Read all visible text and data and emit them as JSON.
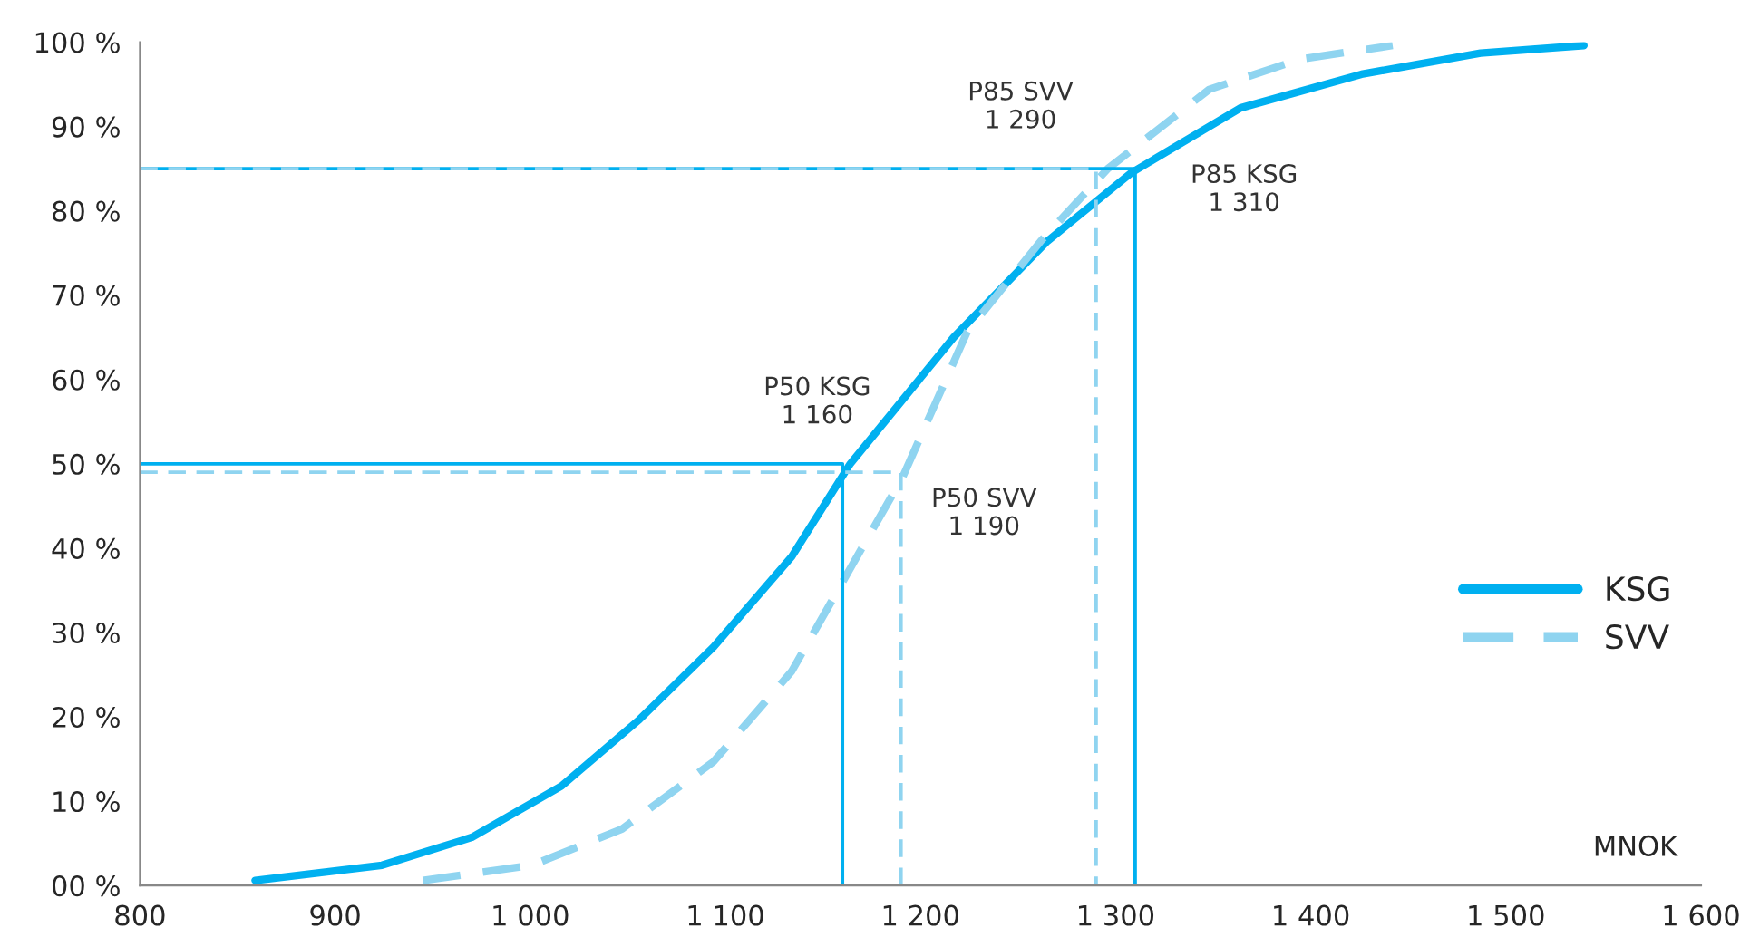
{
  "chart_data": {
    "type": "line",
    "xlabel": "MNOK",
    "xlim": [
      800,
      1600
    ],
    "xticks": [
      800,
      900,
      {
        "value": 1000,
        "label": "1 000"
      },
      {
        "value": 1100,
        "label": "1 100"
      },
      {
        "value": 1200,
        "label": "1 200"
      },
      {
        "value": 1300,
        "label": "1 300"
      },
      {
        "value": 1400,
        "label": "1 400"
      },
      {
        "value": 1500,
        "label": "1 500"
      },
      {
        "value": 1600,
        "label": "1 600"
      }
    ],
    "ylim": [
      0,
      100
    ],
    "yticks": [
      {
        "value": 0,
        "label": "00 %"
      },
      {
        "value": 10,
        "label": "10 %"
      },
      {
        "value": 20,
        "label": "20 %"
      },
      {
        "value": 30,
        "label": "30 %"
      },
      {
        "value": 40,
        "label": "40 %"
      },
      {
        "value": 50,
        "label": "50 %"
      },
      {
        "value": 60,
        "label": "60 %"
      },
      {
        "value": 70,
        "label": "70 %"
      },
      {
        "value": 80,
        "label": "80 %"
      },
      {
        "value": 90,
        "label": "90 %"
      },
      {
        "value": 100,
        "label": "100 %"
      }
    ],
    "grid": false,
    "legend": "right",
    "marker": "none",
    "series": [
      {
        "name": "KSG",
        "color": "#00b0f0",
        "line_style": "solid",
        "x": [
          859,
          924,
          970,
          1016,
          1056,
          1094,
          1134,
          1164,
          1217,
          1265,
          1308,
          1364,
          1426,
          1487,
          1540
        ],
        "values": [
          0.6,
          2.4,
          5.7,
          11.8,
          19.7,
          28.3,
          39,
          50,
          65,
          76.4,
          84.5,
          92.2,
          96.2,
          98.7,
          99.6
        ]
      },
      {
        "name": "SVV",
        "color": "#8fd4f0",
        "line_style": "dashed",
        "x": [
          945,
          1001,
          1047,
          1094,
          1134,
          1165,
          1191,
          1224,
          1262,
          1296,
          1348,
          1395,
          1442
        ],
        "values": [
          0.6,
          2.4,
          6.7,
          14.7,
          25.4,
          38,
          48.5,
          65.7,
          76.5,
          85,
          94.4,
          98,
          99.6
        ]
      },
      {
        "color": "#00b0f0",
        "line_style": "solid",
        "x": [
          800,
          1160,
          1160
        ],
        "values": [
          50,
          50,
          0
        ]
      },
      {
        "color": "#8fd4f0",
        "line_style": "dashed",
        "x": [
          800,
          1190,
          1190
        ],
        "values": [
          49,
          49,
          0
        ]
      },
      {
        "color": "#00b0f0",
        "line_style": "solid",
        "x": [
          800,
          1310,
          1310
        ],
        "values": [
          85,
          85,
          0
        ]
      },
      {
        "color": "#8fd4f0",
        "line_style": "dashed",
        "x": [
          800,
          1290,
          1290
        ],
        "values": [
          85,
          85,
          0
        ]
      }
    ],
    "annotations": [
      {
        "text": "P50 KSG\n1 160",
        "x": 1160,
        "y": 50
      },
      {
        "text": "P50 SVV\n1 190",
        "x": 1190,
        "y": 49
      },
      {
        "text": "P85 SVV\n1 290",
        "x": 1290,
        "y": 85
      },
      {
        "text": "P85 KSG\n1 310",
        "x": 1310,
        "y": 85
      }
    ]
  }
}
